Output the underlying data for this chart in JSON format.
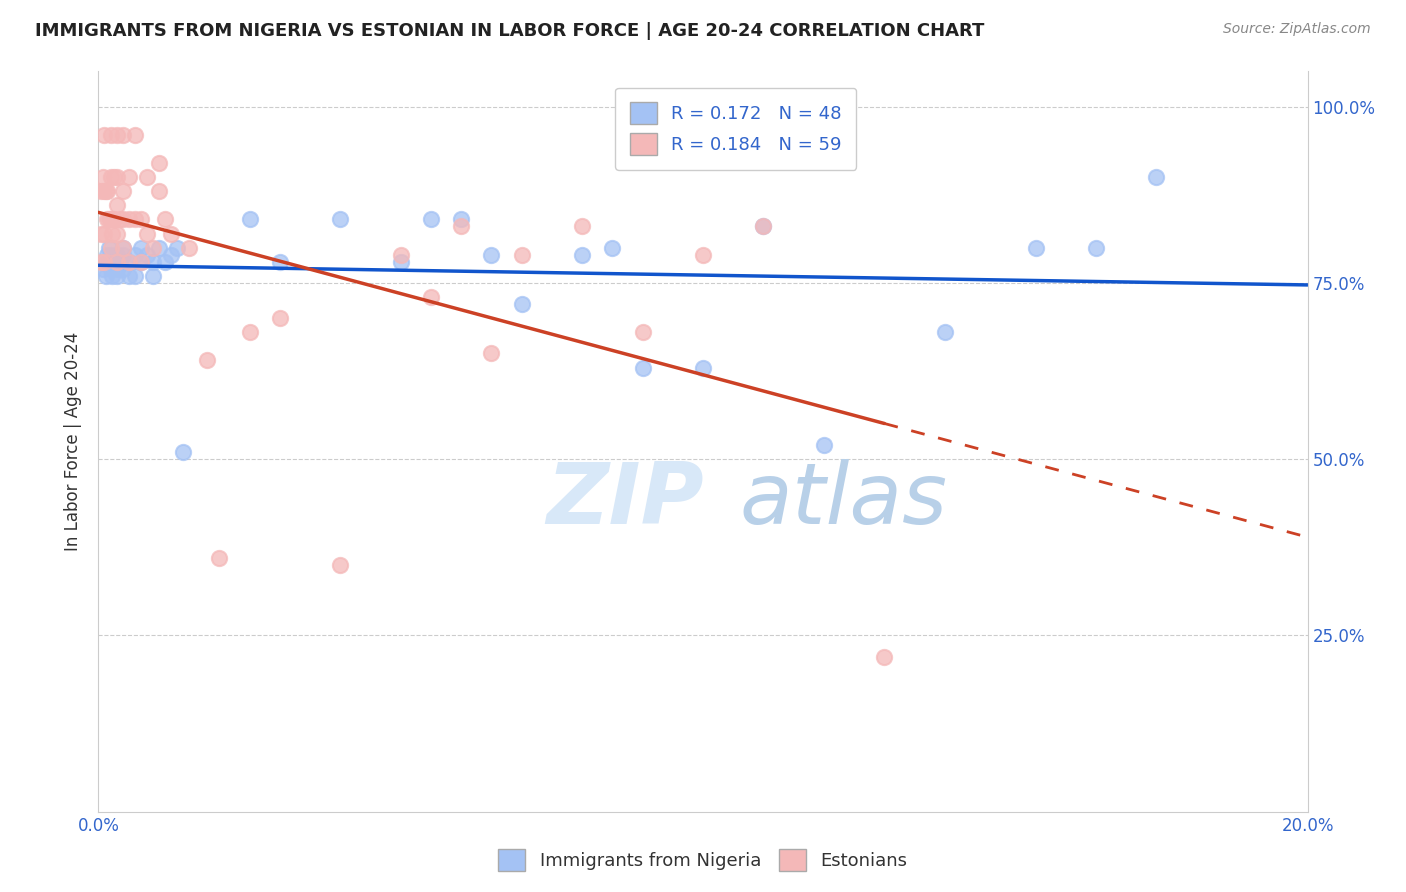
{
  "title": "IMMIGRANTS FROM NIGERIA VS ESTONIAN IN LABOR FORCE | AGE 20-24 CORRELATION CHART",
  "source": "Source: ZipAtlas.com",
  "ylabel": "In Labor Force | Age 20-24",
  "xlim": [
    0.0,
    0.2
  ],
  "ylim": [
    0.0,
    1.05
  ],
  "yticks": [
    0.25,
    0.5,
    0.75,
    1.0
  ],
  "xticks": [
    0.0,
    0.04,
    0.08,
    0.12,
    0.16,
    0.2
  ],
  "blue_R": 0.172,
  "blue_N": 48,
  "pink_R": 0.184,
  "pink_N": 59,
  "blue_color": "#a4c2f4",
  "pink_color": "#f4b8b8",
  "trend_blue_color": "#1155cc",
  "trend_pink_color": "#cc4125",
  "watermark_zip": "ZIP",
  "watermark_atlas": "atlas",
  "legend_label_blue": "Immigrants from Nigeria",
  "legend_label_pink": "Estonians",
  "blue_x": [
    0.0008,
    0.001,
    0.0012,
    0.0015,
    0.0018,
    0.002,
    0.002,
    0.0022,
    0.0025,
    0.003,
    0.003,
    0.003,
    0.0035,
    0.004,
    0.004,
    0.004,
    0.005,
    0.005,
    0.006,
    0.006,
    0.007,
    0.007,
    0.008,
    0.009,
    0.009,
    0.01,
    0.011,
    0.012,
    0.013,
    0.014,
    0.025,
    0.03,
    0.04,
    0.05,
    0.055,
    0.06,
    0.065,
    0.07,
    0.08,
    0.085,
    0.09,
    0.1,
    0.11,
    0.12,
    0.14,
    0.155,
    0.165,
    0.175
  ],
  "blue_y": [
    0.77,
    0.78,
    0.76,
    0.79,
    0.8,
    0.79,
    0.77,
    0.76,
    0.78,
    0.79,
    0.77,
    0.76,
    0.78,
    0.8,
    0.79,
    0.77,
    0.76,
    0.78,
    0.79,
    0.76,
    0.8,
    0.78,
    0.79,
    0.78,
    0.76,
    0.8,
    0.78,
    0.79,
    0.8,
    0.51,
    0.84,
    0.78,
    0.84,
    0.78,
    0.84,
    0.84,
    0.79,
    0.72,
    0.79,
    0.8,
    0.63,
    0.63,
    0.83,
    0.52,
    0.68,
    0.8,
    0.8,
    0.9
  ],
  "pink_x": [
    0.0005,
    0.0005,
    0.0005,
    0.0008,
    0.001,
    0.001,
    0.001,
    0.001,
    0.0012,
    0.0015,
    0.0015,
    0.0018,
    0.002,
    0.002,
    0.002,
    0.002,
    0.0022,
    0.0025,
    0.0025,
    0.003,
    0.003,
    0.003,
    0.003,
    0.003,
    0.0035,
    0.004,
    0.004,
    0.004,
    0.004,
    0.005,
    0.005,
    0.005,
    0.006,
    0.006,
    0.007,
    0.007,
    0.008,
    0.008,
    0.009,
    0.01,
    0.01,
    0.011,
    0.012,
    0.015,
    0.018,
    0.02,
    0.025,
    0.03,
    0.04,
    0.05,
    0.055,
    0.06,
    0.065,
    0.07,
    0.08,
    0.09,
    0.1,
    0.11,
    0.13
  ],
  "pink_y": [
    0.78,
    0.82,
    0.88,
    0.9,
    0.78,
    0.82,
    0.88,
    0.96,
    0.88,
    0.84,
    0.88,
    0.84,
    0.8,
    0.84,
    0.9,
    0.96,
    0.82,
    0.84,
    0.9,
    0.78,
    0.82,
    0.86,
    0.9,
    0.96,
    0.84,
    0.8,
    0.84,
    0.88,
    0.96,
    0.78,
    0.84,
    0.9,
    0.84,
    0.96,
    0.78,
    0.84,
    0.9,
    0.82,
    0.8,
    0.88,
    0.92,
    0.84,
    0.82,
    0.8,
    0.64,
    0.36,
    0.68,
    0.7,
    0.35,
    0.79,
    0.73,
    0.83,
    0.65,
    0.79,
    0.83,
    0.68,
    0.79,
    0.83,
    0.22
  ]
}
